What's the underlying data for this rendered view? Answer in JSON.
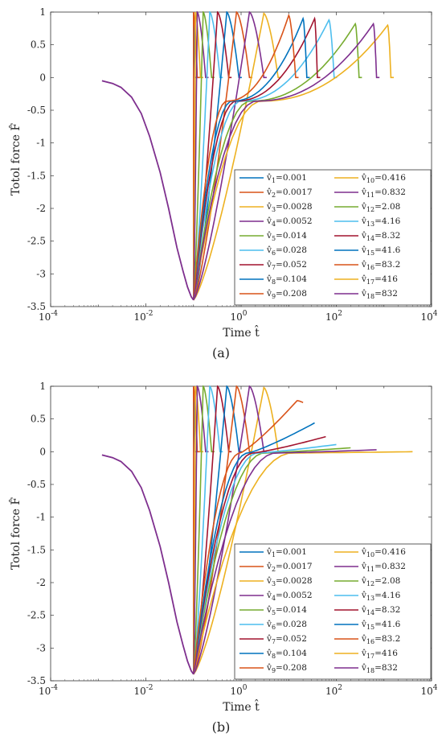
{
  "chart_data": [
    {
      "type": "line",
      "panel_label": "(a)",
      "xlabel": "Time t̂",
      "ylabel": "Totol force F̂",
      "x_scale": "log",
      "xlim": [
        0.0001,
        10000
      ],
      "ylim": [
        -3.5,
        1
      ],
      "x_ticks": [
        "10-4",
        "10-2",
        "100",
        "102",
        "104"
      ],
      "y_ticks": [
        "1",
        "0.5",
        "0",
        "-0.5",
        "-1",
        "-1.5",
        "-2",
        "-2.5",
        "-3",
        "-3.5"
      ],
      "legend_position": "lower-right",
      "common_curve": {
        "x": [
          0.0012,
          0.002,
          0.003,
          0.005,
          0.008,
          0.012,
          0.02,
          0.03,
          0.045,
          0.06,
          0.075,
          0.09,
          0.1
        ],
        "y": [
          -0.05,
          -0.09,
          -0.15,
          -0.3,
          -0.55,
          -0.9,
          -1.45,
          -2.0,
          -2.6,
          -2.95,
          -3.2,
          -3.35,
          -3.4
        ]
      },
      "series": [
        {
          "name": "v̂1=0.001",
          "peak_time": 0.1,
          "peak_value": 1.0,
          "end_time": 0.108,
          "final_value": 0
        },
        {
          "name": "v̂2=0.0017",
          "peak_time": 0.1,
          "peak_value": 1.0,
          "end_time": 0.12,
          "final_value": 0
        },
        {
          "name": "v̂3=0.0028",
          "peak_time": 0.11,
          "peak_value": 1.0,
          "end_time": 0.14,
          "final_value": 0
        },
        {
          "name": "v̂4=0.0052",
          "peak_time": 0.12,
          "peak_value": 1.0,
          "end_time": 0.18,
          "final_value": 0
        },
        {
          "name": "v̂5=0.014",
          "peak_time": 0.16,
          "peak_value": 1.0,
          "end_time": 0.24,
          "final_value": 0
        },
        {
          "name": "v̂6=0.028",
          "peak_time": 0.22,
          "peak_value": 1.0,
          "end_time": 0.36,
          "final_value": 0
        },
        {
          "name": "v̂7=0.052",
          "peak_time": 0.32,
          "peak_value": 1.0,
          "end_time": 0.55,
          "final_value": 0
        },
        {
          "name": "v̂8=0.104",
          "peak_time": 0.5,
          "peak_value": 1.0,
          "end_time": 0.9,
          "final_value": 0
        },
        {
          "name": "v̂9=0.208",
          "peak_time": 0.8,
          "peak_value": 1.0,
          "end_time": 1.5,
          "final_value": 0
        },
        {
          "name": "v̂10=0.416",
          "peak_time": 3.0,
          "peak_value": 0.98,
          "end_time": 6.0,
          "final_value": 0
        },
        {
          "name": "v̂11=0.832",
          "peak_time": 1.5,
          "peak_value": 1.0,
          "end_time": 3.0,
          "final_value": 0
        },
        {
          "name": "v̂12=2.08",
          "peak_time": 250,
          "peak_value": 0.82,
          "end_time": 300,
          "final_value": 0
        },
        {
          "name": "v̂13=4.16",
          "peak_time": 70,
          "peak_value": 0.88,
          "end_time": 90,
          "final_value": 0
        },
        {
          "name": "v̂14=8.32",
          "peak_time": 35,
          "peak_value": 0.9,
          "end_time": 40,
          "final_value": 0
        },
        {
          "name": "v̂15=41.6",
          "peak_time": 20,
          "peak_value": 0.9,
          "end_time": 24,
          "final_value": 0
        },
        {
          "name": "v̂16=83.2",
          "peak_time": 10,
          "peak_value": 0.95,
          "end_time": 14,
          "final_value": 0
        },
        {
          "name": "v̂17=416",
          "peak_time": 1200,
          "peak_value": 0.8,
          "end_time": 1400,
          "final_value": 0
        },
        {
          "name": "v̂18=832",
          "peak_time": 600,
          "peak_value": 0.82,
          "end_time": 700,
          "final_value": 0
        }
      ]
    },
    {
      "type": "line",
      "panel_label": "(b)",
      "xlabel": "Time t̂",
      "ylabel": "Totol force F̂",
      "x_scale": "log",
      "xlim": [
        0.0001,
        10000
      ],
      "ylim": [
        -3.5,
        1
      ],
      "x_ticks": [
        "10-4",
        "10-2",
        "100",
        "102",
        "104"
      ],
      "y_ticks": [
        "1",
        "0.5",
        "0",
        "-0.5",
        "-1",
        "-1.5",
        "-2",
        "-2.5",
        "-3",
        "-3.5"
      ],
      "legend_position": "lower-right",
      "common_curve": {
        "x": [
          0.0012,
          0.002,
          0.003,
          0.005,
          0.008,
          0.012,
          0.02,
          0.03,
          0.045,
          0.06,
          0.075,
          0.09,
          0.1
        ],
        "y": [
          -0.05,
          -0.09,
          -0.15,
          -0.3,
          -0.55,
          -0.9,
          -1.45,
          -2.0,
          -2.6,
          -2.95,
          -3.2,
          -3.35,
          -3.4
        ]
      },
      "series": [
        {
          "name": "v̂1=0.001",
          "peak_time": 0.1,
          "peak_value": 1.0,
          "end_time": 0.108,
          "final_value": 0,
          "last_time": 0.108
        },
        {
          "name": "v̂2=0.0017",
          "peak_time": 0.1,
          "peak_value": 1.0,
          "end_time": 0.12,
          "final_value": 0,
          "last_time": 0.12
        },
        {
          "name": "v̂3=0.0028",
          "peak_time": 0.11,
          "peak_value": 1.0,
          "end_time": 0.14,
          "final_value": 0,
          "last_time": 0.14
        },
        {
          "name": "v̂4=0.0052",
          "peak_time": 0.12,
          "peak_value": 1.0,
          "end_time": 0.18,
          "final_value": 0,
          "last_time": 0.18
        },
        {
          "name": "v̂5=0.014",
          "peak_time": 0.16,
          "peak_value": 1.0,
          "end_time": 0.24,
          "final_value": 0,
          "last_time": 0.24
        },
        {
          "name": "v̂6=0.028",
          "peak_time": 0.22,
          "peak_value": 1.0,
          "end_time": 0.36,
          "final_value": 0,
          "last_time": 0.36
        },
        {
          "name": "v̂7=0.052",
          "peak_time": 0.32,
          "peak_value": 1.0,
          "end_time": 0.55,
          "final_value": 0,
          "last_time": 0.55
        },
        {
          "name": "v̂8=0.104",
          "peak_time": 0.5,
          "peak_value": 1.0,
          "end_time": 0.9,
          "final_value": 0,
          "last_time": 0.9
        },
        {
          "name": "v̂9=0.208",
          "peak_time": 0.8,
          "peak_value": 1.0,
          "end_time": 1.5,
          "final_value": 0,
          "last_time": 1.5
        },
        {
          "name": "v̂10=0.416",
          "peak_time": 3.0,
          "peak_value": 0.98,
          "end_time": 6.0,
          "final_value": 0,
          "last_time": 6.0
        },
        {
          "name": "v̂11=0.832",
          "peak_time": 1.5,
          "peak_value": 1.0,
          "end_time": 3.0,
          "final_value": 0,
          "last_time": 3.0
        },
        {
          "name": "v̂12=2.08",
          "peak_time": 200,
          "peak_value": 0.06,
          "end_time": 200,
          "final_value": 0.06,
          "last_time": 200
        },
        {
          "name": "v̂13=4.16",
          "peak_time": 100,
          "peak_value": 0.11,
          "end_time": 100,
          "final_value": 0.11,
          "last_time": 100
        },
        {
          "name": "v̂14=8.32",
          "peak_time": 60,
          "peak_value": 0.23,
          "end_time": 60,
          "final_value": 0.23,
          "last_time": 60
        },
        {
          "name": "v̂15=41.6",
          "peak_time": 35,
          "peak_value": 0.44,
          "end_time": 35,
          "final_value": 0.44,
          "last_time": 35
        },
        {
          "name": "v̂16=83.2",
          "peak_time": 15,
          "peak_value": 0.78,
          "end_time": 20,
          "final_value": 0.75,
          "last_time": 20
        },
        {
          "name": "v̂17=416",
          "peak_time": 4000,
          "peak_value": 0.0,
          "end_time": 4000,
          "final_value": 0.0,
          "last_time": 4000
        },
        {
          "name": "v̂18=832",
          "peak_time": 700,
          "peak_value": 0.03,
          "end_time": 700,
          "final_value": 0.03,
          "last_time": 700
        }
      ]
    }
  ],
  "colors": [
    "#0072BD",
    "#D95319",
    "#EDB120",
    "#7E2F8E",
    "#77AC30",
    "#4DBEEE",
    "#A2142F"
  ]
}
